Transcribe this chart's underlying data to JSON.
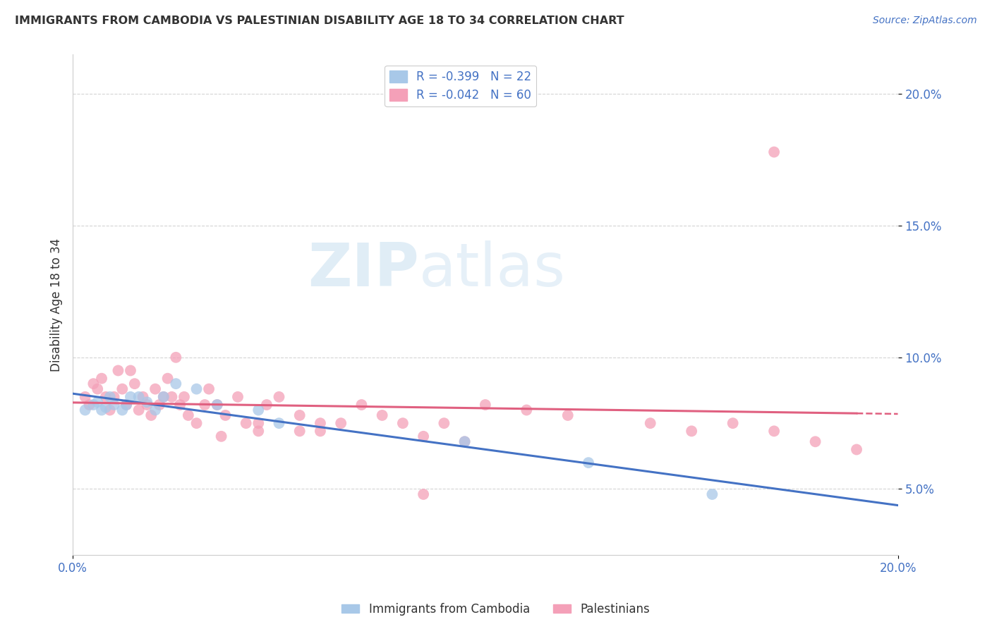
{
  "title": "IMMIGRANTS FROM CAMBODIA VS PALESTINIAN DISABILITY AGE 18 TO 34 CORRELATION CHART",
  "source": "Source: ZipAtlas.com",
  "ylabel": "Disability Age 18 to 34",
  "xlim": [
    0.0,
    0.2
  ],
  "ylim": [
    0.025,
    0.215
  ],
  "yticks": [
    0.05,
    0.1,
    0.15,
    0.2
  ],
  "ytick_labels": [
    "5.0%",
    "10.0%",
    "15.0%",
    "20.0%"
  ],
  "legend_entry1": "R = -0.399   N = 22",
  "legend_entry2": "R = -0.042   N = 60",
  "legend_label1": "Immigrants from Cambodia",
  "legend_label2": "Palestinians",
  "color_cambodia": "#a8c8e8",
  "color_palestine": "#f4a0b8",
  "color_line_cambodia": "#4472C4",
  "color_line_palestine": "#E06080",
  "watermark_color": "#ddeeff",
  "cambodia_x": [
    0.003,
    0.005,
    0.006,
    0.007,
    0.008,
    0.009,
    0.01,
    0.012,
    0.013,
    0.014,
    0.016,
    0.018,
    0.02,
    0.022,
    0.025,
    0.03,
    0.035,
    0.045,
    0.05,
    0.095,
    0.125,
    0.155
  ],
  "cambodia_y": [
    0.08,
    0.082,
    0.083,
    0.08,
    0.081,
    0.085,
    0.082,
    0.08,
    0.082,
    0.085,
    0.085,
    0.083,
    0.08,
    0.085,
    0.09,
    0.088,
    0.082,
    0.08,
    0.075,
    0.068,
    0.06,
    0.048
  ],
  "palestine_x": [
    0.003,
    0.004,
    0.005,
    0.006,
    0.007,
    0.008,
    0.009,
    0.01,
    0.011,
    0.012,
    0.013,
    0.014,
    0.015,
    0.016,
    0.017,
    0.018,
    0.019,
    0.02,
    0.021,
    0.022,
    0.023,
    0.024,
    0.025,
    0.026,
    0.027,
    0.028,
    0.03,
    0.032,
    0.033,
    0.035,
    0.036,
    0.037,
    0.04,
    0.042,
    0.045,
    0.047,
    0.05,
    0.055,
    0.06,
    0.065,
    0.07,
    0.075,
    0.08,
    0.085,
    0.09,
    0.095,
    0.1,
    0.11,
    0.12,
    0.14,
    0.15,
    0.16,
    0.17,
    0.18,
    0.19,
    0.045,
    0.055,
    0.06,
    0.085,
    0.17
  ],
  "palestine_y": [
    0.085,
    0.082,
    0.09,
    0.088,
    0.092,
    0.085,
    0.08,
    0.085,
    0.095,
    0.088,
    0.082,
    0.095,
    0.09,
    0.08,
    0.085,
    0.082,
    0.078,
    0.088,
    0.082,
    0.085,
    0.092,
    0.085,
    0.1,
    0.082,
    0.085,
    0.078,
    0.075,
    0.082,
    0.088,
    0.082,
    0.07,
    0.078,
    0.085,
    0.075,
    0.072,
    0.082,
    0.085,
    0.078,
    0.072,
    0.075,
    0.082,
    0.078,
    0.075,
    0.07,
    0.075,
    0.068,
    0.082,
    0.08,
    0.078,
    0.075,
    0.072,
    0.075,
    0.072,
    0.068,
    0.065,
    0.075,
    0.072,
    0.075,
    0.048,
    0.178
  ],
  "grid_color": "#d0d0d0",
  "background_color": "#ffffff",
  "title_color": "#333333",
  "tick_color": "#4472C4"
}
